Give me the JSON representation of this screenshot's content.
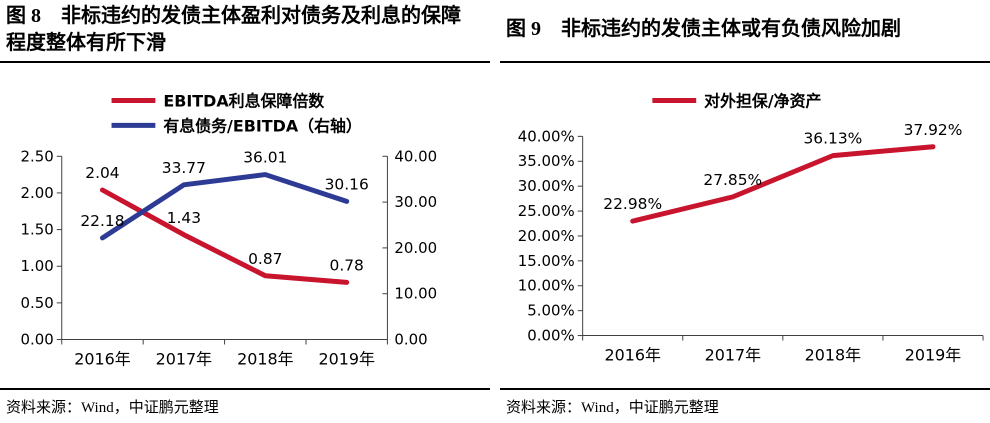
{
  "panels": [
    {
      "title": "图 8　非标违约的发债主体盈利对债务及利息的保障程度整体有所下滑",
      "source": "资料来源：Wind，中证鹏元整理"
    },
    {
      "title": "图 9　非标违约的发债主体或有负债风险加剧",
      "source": "资料来源：Wind，中证鹏元整理"
    }
  ],
  "colors": {
    "series_red": "#C9142E",
    "series_blue": "#2E3B94",
    "axis_line": "#404040"
  },
  "chart_data": [
    {
      "type": "line",
      "title": "图 8 非标违约的发债主体盈利对债务及利息的保障程度整体有所下滑",
      "categories": [
        "2016年",
        "2017年",
        "2018年",
        "2019年"
      ],
      "series": [
        {
          "name": "EBITDA利息保障倍数",
          "axis": "left",
          "color": "#C9142E",
          "values": [
            2.04,
            1.43,
            0.87,
            0.78
          ],
          "labels": [
            "2.04",
            "1.43",
            "0.87",
            "0.78"
          ]
        },
        {
          "name": "有息债务/EBITDA（右轴）",
          "axis": "right",
          "color": "#2E3B94",
          "values": [
            22.18,
            33.77,
            36.01,
            30.16
          ],
          "labels": [
            "22.18",
            "33.77",
            "36.01",
            "30.16"
          ]
        }
      ],
      "left_axis": {
        "min": 0,
        "max": 2.5,
        "ticks": [
          "2.50",
          "2.00",
          "1.50",
          "1.00",
          "0.50",
          "0.00"
        ]
      },
      "right_axis": {
        "min": 0,
        "max": 40,
        "ticks": [
          "40.00",
          "30.00",
          "20.00",
          "10.00",
          "0.00"
        ]
      },
      "legend_position": "top",
      "grid": false
    },
    {
      "type": "line",
      "title": "图 9 非标违约的发债主体或有负债风险加剧",
      "categories": [
        "2016年",
        "2017年",
        "2018年",
        "2019年"
      ],
      "series": [
        {
          "name": "对外担保/净资产",
          "axis": "left",
          "color": "#C9142E",
          "values": [
            22.98,
            27.85,
            36.13,
            37.92
          ],
          "labels": [
            "22.98%",
            "27.85%",
            "36.13%",
            "37.92%"
          ]
        }
      ],
      "left_axis": {
        "min": 0,
        "max": 40,
        "ticks": [
          "40.00%",
          "35.00%",
          "30.00%",
          "25.00%",
          "20.00%",
          "15.00%",
          "10.00%",
          "5.00%",
          "0.00%"
        ]
      },
      "legend_position": "top",
      "grid": false
    }
  ]
}
